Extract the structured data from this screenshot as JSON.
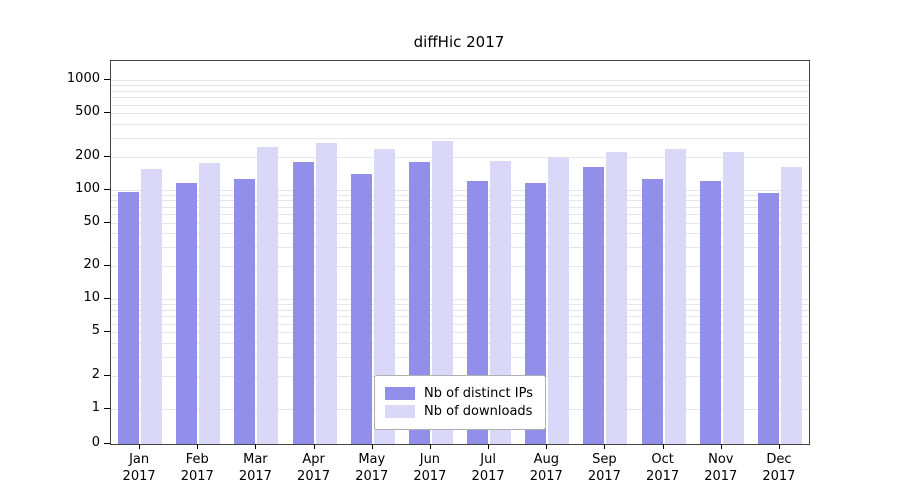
{
  "title": "diffHic 2017",
  "chart_data": {
    "type": "bar",
    "title": "diffHic 2017",
    "categories": [
      "Jan",
      "Feb",
      "Mar",
      "Apr",
      "May",
      "Jun",
      "Jul",
      "Aug",
      "Sep",
      "Oct",
      "Nov",
      "Dec"
    ],
    "year_label": "2017",
    "series": [
      {
        "name": "Nb of distinct IPs",
        "color": "#918fe9",
        "values": [
          95,
          115,
          125,
          180,
          140,
          180,
          120,
          115,
          162,
          125,
          120,
          93
        ]
      },
      {
        "name": "Nb of downloads",
        "color": "#d9d8f8",
        "values": [
          155,
          175,
          245,
          270,
          235,
          280,
          185,
          200,
          220,
          235,
          220,
          160
        ]
      }
    ],
    "yticks": [
      0,
      1,
      2,
      5,
      10,
      20,
      50,
      100,
      200,
      500,
      1000
    ],
    "scale": "symlog",
    "ylim": [
      0,
      1000
    ],
    "xlabel": "",
    "ylabel": "",
    "grid": "minor-horizontal",
    "gridline_color": "#e6e6e6",
    "legend_position": "bottom-center"
  }
}
